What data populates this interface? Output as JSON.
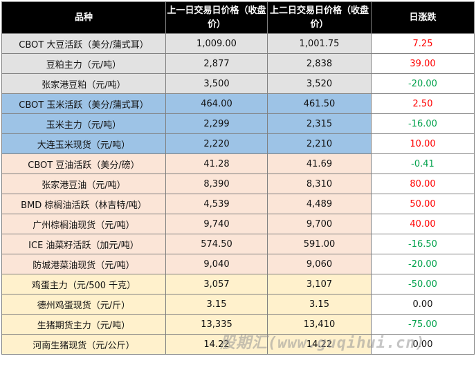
{
  "headers": {
    "variety": "品种",
    "prev_day": "上一日交易日价格（收盘价）",
    "prev2_day": "上二日交易日价格（收盘价）",
    "daily_change": "日涨跌"
  },
  "rows": [
    {
      "name": "CBOT 大豆活跃（美分/蒲式耳）",
      "p1": "1,009.00",
      "p2": "1,001.75",
      "change": "7.25",
      "dir": "up",
      "group": "grey"
    },
    {
      "name": "豆粕主力（元/吨）",
      "p1": "2,877",
      "p2": "2,838",
      "change": "39.00",
      "dir": "up",
      "group": "grey"
    },
    {
      "name": "张家港豆粕（元/吨）",
      "p1": "3,500",
      "p2": "3,520",
      "change": "-20.00",
      "dir": "down",
      "group": "grey"
    },
    {
      "name": "CBOT 玉米活跃（美分/蒲式耳）",
      "p1": "464.00",
      "p2": "461.50",
      "change": "2.50",
      "dir": "up",
      "group": "blue"
    },
    {
      "name": "玉米主力（元/吨）",
      "p1": "2,299",
      "p2": "2,315",
      "change": "-16.00",
      "dir": "down",
      "group": "blue"
    },
    {
      "name": "大连玉米现货（元/吨）",
      "p1": "2,220",
      "p2": "2,210",
      "change": "10.00",
      "dir": "up",
      "group": "blue"
    },
    {
      "name": "CBOT 豆油活跃（美分/磅）",
      "p1": "41.28",
      "p2": "41.69",
      "change": "-0.41",
      "dir": "down",
      "group": "pink"
    },
    {
      "name": "张家港豆油（元/吨）",
      "p1": "8,390",
      "p2": "8,310",
      "change": "80.00",
      "dir": "up",
      "group": "pink"
    },
    {
      "name": "BMD 棕榈油活跃（林吉特/吨）",
      "p1": "4,539",
      "p2": "4,489",
      "change": "50.00",
      "dir": "up",
      "group": "pink"
    },
    {
      "name": "广州棕榈油现货（元/吨）",
      "p1": "9,740",
      "p2": "9,700",
      "change": "40.00",
      "dir": "up",
      "group": "pink"
    },
    {
      "name": "ICE 油菜籽活跃（加元/吨）",
      "p1": "574.50",
      "p2": "591.00",
      "change": "-16.50",
      "dir": "down",
      "group": "pink"
    },
    {
      "name": "防城港菜油现货（元/吨）",
      "p1": "9,040",
      "p2": "9,060",
      "change": "-20.00",
      "dir": "down",
      "group": "pink"
    },
    {
      "name": "鸡蛋主力（元/500 千克）",
      "p1": "3,057",
      "p2": "3,107",
      "change": "-50.00",
      "dir": "down",
      "group": "yellow"
    },
    {
      "name": "德州鸡蛋现货（元/斤）",
      "p1": "3.15",
      "p2": "3.15",
      "change": "0.00",
      "dir": "flat",
      "group": "yellow"
    },
    {
      "name": "生猪期货主力（元/吨）",
      "p1": "13,335",
      "p2": "13,410",
      "change": "-75.00",
      "dir": "down",
      "group": "yellow"
    },
    {
      "name": "河南生猪现货（元/公斤）",
      "p1": "14.22",
      "p2": "14.22",
      "change": "0.00",
      "dir": "flat",
      "group": "yellow"
    }
  ],
  "watermark": "股期汇(www.guqihui.cn)",
  "colors": {
    "up": "#ff0000",
    "down": "#00a14b",
    "header_bg": "#000000",
    "grey": "#e2e2e2",
    "blue": "#9dc3e6",
    "pink": "#fbe5d7",
    "yellow": "#fff1cc"
  }
}
